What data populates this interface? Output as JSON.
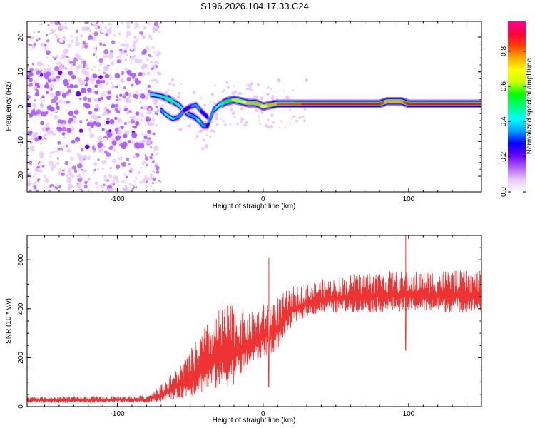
{
  "title": "S196.2026.104.17.33.C24",
  "chart_data": [
    {
      "type": "heatmap",
      "title": "S196.2026.104.17.33.C24",
      "xlabel": "Height of straight line (km)",
      "ylabel": "Frequency (Hz)",
      "xlim": [
        -162,
        150
      ],
      "ylim": [
        -24.5,
        24.5
      ],
      "x_ticks": [
        -100,
        0,
        100
      ],
      "x_tick_labels": [
        "-100",
        "0",
        "100"
      ],
      "y_ticks": [
        -20,
        -10,
        0,
        10,
        20
      ],
      "y_tick_labels": [
        "-20",
        "-10",
        "0",
        "10",
        "20"
      ],
      "colorbar": {
        "label": "Normalized spectral amplitude",
        "range": [
          0,
          0.97
        ],
        "ticks": [
          0.0,
          0.2,
          0.4,
          0.6,
          0.8
        ],
        "tick_labels": [
          "0.0",
          "0.2",
          "0.4",
          "0.6",
          "0.8"
        ],
        "colors": [
          "#ffffff",
          "#e9c8ff",
          "#b060ff",
          "#6a00ff",
          "#0000ff",
          "#00a0ff",
          "#00ffff",
          "#00ff80",
          "#00ff00",
          "#ccff00",
          "#ffff00",
          "#ffaa00",
          "#ff4000",
          "#ff0040",
          "#ff0099"
        ]
      },
      "ridge": {
        "x": [
          -77,
          -70,
          -64,
          -58,
          -52,
          -47,
          -44,
          -41,
          -38,
          -34,
          -30,
          -25,
          -20,
          -15,
          -10,
          -5,
          -2,
          0,
          5,
          10,
          20,
          40,
          60,
          80,
          85,
          95,
          100,
          110,
          130,
          150
        ],
        "frequency": [
          3.5,
          3.0,
          2.0,
          0.5,
          -2.0,
          -3.0,
          -4.0,
          -5.5,
          -5.5,
          -1.0,
          0.5,
          1.5,
          2.0,
          1.5,
          1.0,
          1.0,
          0.5,
          0.0,
          0.5,
          0.8,
          0.8,
          0.8,
          0.8,
          0.8,
          1.5,
          1.5,
          0.8,
          0.8,
          0.8,
          0.8
        ],
        "amplitude": [
          0.45,
          0.45,
          0.5,
          0.45,
          0.35,
          0.35,
          0.4,
          0.35,
          0.3,
          0.35,
          0.45,
          0.55,
          0.6,
          0.65,
          0.75,
          0.8,
          0.75,
          0.7,
          0.75,
          0.8,
          0.85,
          0.9,
          0.9,
          0.9,
          0.75,
          0.75,
          0.9,
          0.9,
          0.9,
          0.9
        ]
      },
      "secondary_ridge": {
        "x": [
          -70,
          -66,
          -62,
          -58,
          -54,
          -50,
          -46,
          -42,
          -38
        ],
        "frequency": [
          -1.0,
          -2.5,
          -3.5,
          -3.0,
          -1.0,
          0.0,
          0.5,
          -1.5,
          -3.0
        ],
        "amplitude": [
          0.35,
          0.4,
          0.4,
          0.35,
          0.3,
          0.3,
          0.35,
          0.3,
          0.3
        ]
      },
      "noise_region": {
        "x": [
          -162,
          -77
        ],
        "frequency": [
          -24.5,
          24.5
        ],
        "amplitude": [
          0.0,
          0.15
        ]
      }
    },
    {
      "type": "line",
      "xlabel": "Height of straight line (km)",
      "ylabel": "SNR (10 * v/v)",
      "xlim": [
        -162,
        150
      ],
      "ylim": [
        0,
        700
      ],
      "x_ticks": [
        -100,
        0,
        100
      ],
      "x_tick_labels": [
        "-100",
        "0",
        "100"
      ],
      "y_ticks": [
        0,
        200,
        400,
        600
      ],
      "y_tick_labels": [
        "0",
        "200",
        "400",
        "600"
      ],
      "series": [
        {
          "name": "SNR",
          "color": "#ee3333",
          "envelope_x": [
            -162,
            -80,
            -70,
            -60,
            -50,
            -40,
            -30,
            -20,
            -10,
            0,
            10,
            20,
            30,
            40,
            60,
            80,
            100,
            120,
            150
          ],
          "envelope_low": [
            15,
            15,
            20,
            30,
            40,
            60,
            70,
            90,
            160,
            200,
            230,
            330,
            370,
            380,
            385,
            385,
            390,
            385,
            385
          ],
          "envelope_high": [
            40,
            45,
            90,
            150,
            230,
            330,
            400,
            430,
            380,
            420,
            450,
            490,
            500,
            520,
            540,
            560,
            550,
            560,
            555
          ],
          "spikes": [
            {
              "x": 4,
              "y": 610
            },
            {
              "x": 4,
              "y": 80
            },
            {
              "x": 98,
              "y": 700
            },
            {
              "x": 98,
              "y": 230
            }
          ]
        }
      ]
    }
  ]
}
